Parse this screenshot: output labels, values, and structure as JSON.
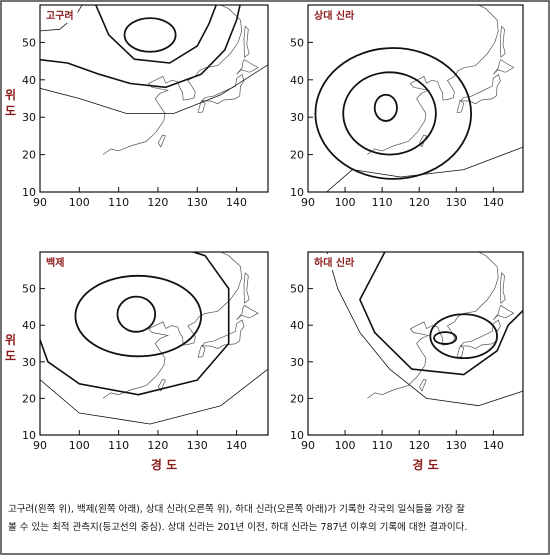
{
  "panels": [
    {
      "label": "고구려"
    },
    {
      "label": "상대 신라"
    },
    {
      "label": "백제"
    },
    {
      "label": "하대 신라"
    }
  ],
  "xlim": [
    90,
    148
  ],
  "ylim": [
    10,
    60
  ],
  "xticks": [
    90,
    100,
    110,
    120,
    130,
    140
  ],
  "yticks": [
    10,
    20,
    30,
    40,
    50
  ],
  "y_axis_label": "위 도",
  "x_axis_label": "경 도",
  "caption": [
    "고구려(왼쪽 위), 백제(왼쪽 아래), 상대 신라(오른쪽 위), 하대 신라(오른쪽 아래)가 기록한 각국의 일식들을 가장 잘",
    "볼 수 있는 최적 관측지(등고선의 중심). 상대 신라는 201년 이전, 하대 신라는 787년 이후의 기록에 대한 결과이다."
  ]
}
